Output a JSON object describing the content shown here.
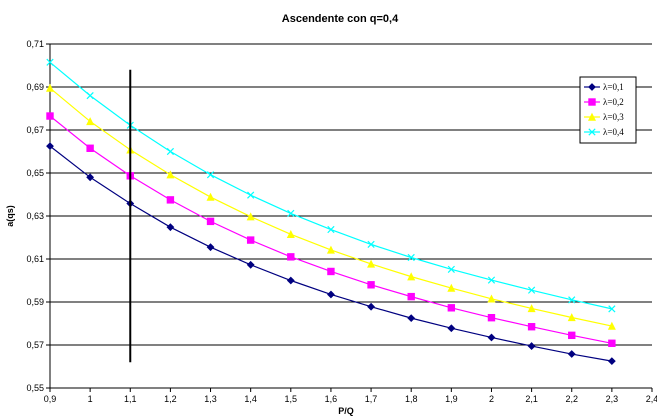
{
  "chart_data": {
    "type": "line",
    "title": "Ascendente con q=0,4",
    "xlabel": "P/Q",
    "ylabel": "a(qs)",
    "xlim": [
      0.9,
      2.4
    ],
    "ylim": [
      0.55,
      0.71
    ],
    "x_ticks": [
      "0,9",
      "1",
      "1,1",
      "1,2",
      "1,3",
      "1,4",
      "1,5",
      "1,6",
      "1,7",
      "1,8",
      "1,9",
      "2",
      "2,1",
      "2,2",
      "2,3",
      "2,4"
    ],
    "y_ticks": [
      "0,55",
      "0,57",
      "0,59",
      "0,61",
      "0,63",
      "0,65",
      "0,67",
      "0,69",
      "0,71"
    ],
    "grid": "horizontal",
    "legend_position": "right",
    "x": [
      0.9,
      1.0,
      1.1,
      1.2,
      1.3,
      1.4,
      1.5,
      1.6,
      1.7,
      1.8,
      1.9,
      2.0,
      2.1,
      2.2,
      2.3
    ],
    "series": [
      {
        "name": "λ=0,1",
        "color": "#000080",
        "marker": "diamond",
        "values": [
          0.6625,
          0.648,
          0.6358,
          0.6248,
          0.6155,
          0.6073,
          0.6,
          0.5935,
          0.5878,
          0.5825,
          0.5778,
          0.5735,
          0.5695,
          0.5658,
          0.5625
        ]
      },
      {
        "name": "λ=0,2",
        "color": "#ff00ff",
        "marker": "square",
        "values": [
          0.6765,
          0.6615,
          0.6487,
          0.6375,
          0.6275,
          0.6188,
          0.611,
          0.6042,
          0.598,
          0.5925,
          0.5873,
          0.5827,
          0.5785,
          0.5745,
          0.5708
        ]
      },
      {
        "name": "λ=0,3",
        "color": "#ffff00",
        "marker": "triangle",
        "values": [
          0.6895,
          0.674,
          0.6608,
          0.6492,
          0.6388,
          0.6297,
          0.6215,
          0.6142,
          0.6077,
          0.6018,
          0.5965,
          0.5915,
          0.587,
          0.5828,
          0.5788
        ]
      },
      {
        "name": "λ=0,4",
        "color": "#00ffff",
        "marker": "x",
        "values": [
          0.7015,
          0.686,
          0.6722,
          0.66,
          0.6492,
          0.6397,
          0.6312,
          0.6237,
          0.6168,
          0.6107,
          0.6052,
          0.6002,
          0.5955,
          0.591,
          0.5868
        ]
      }
    ],
    "vertical_marker": {
      "x": 1.1,
      "y_from": 0.562,
      "y_to": 0.698,
      "color": "#000000"
    }
  }
}
